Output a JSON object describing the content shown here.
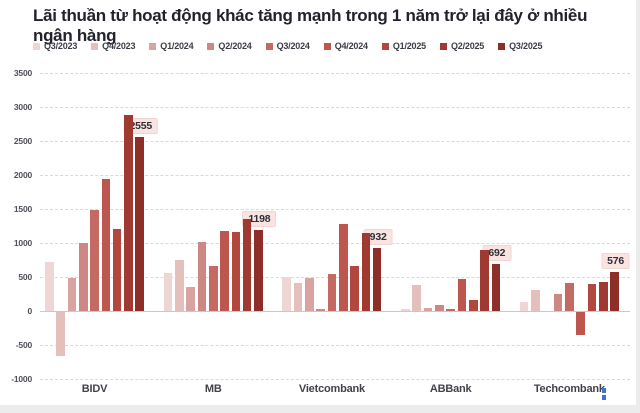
{
  "title": "Lãi thuần từ hoạt động khác tăng mạnh trong 1 năm trở lại đây ở nhiều ngân hàng",
  "chart_data": {
    "type": "bar",
    "title": "Lãi thuần từ hoạt động khác tăng mạnh trong 1 năm trở lại đây ở nhiều ngân hàng",
    "categories": [
      "BIDV",
      "MB",
      "Vietcombank",
      "ABBank",
      "Techcombank"
    ],
    "series": [
      {
        "name": "Q3/2023",
        "color": "#eed6d4",
        "values": [
          720,
          555,
          505,
          30,
          130
        ]
      },
      {
        "name": "Q4/2023",
        "color": "#e4bfbc",
        "values": [
          -650,
          745,
          410,
          380,
          310
        ]
      },
      {
        "name": "Q1/2024",
        "color": "#d8a3a0",
        "values": [
          490,
          350,
          490,
          50,
          0
        ]
      },
      {
        "name": "Q2/2024",
        "color": "#ce8883",
        "values": [
          1005,
          1010,
          30,
          85,
          255
        ]
      },
      {
        "name": "Q3/2024",
        "color": "#c56a62",
        "values": [
          1490,
          660,
          550,
          25,
          410
        ]
      },
      {
        "name": "Q4/2024",
        "color": "#bc564e",
        "values": [
          1940,
          1170,
          1280,
          470,
          -345
        ]
      },
      {
        "name": "Q1/2025",
        "color": "#b1473f",
        "values": [
          1200,
          1160,
          660,
          165,
          390
        ]
      },
      {
        "name": "Q2/2025",
        "color": "#a03932",
        "values": [
          2880,
          1350,
          1150,
          890,
          420
        ]
      },
      {
        "name": "Q3/2025",
        "color": "#8d2f28",
        "values": [
          2555,
          1198,
          932,
          692,
          576
        ]
      }
    ],
    "data_labels_last_series": [
      "2555",
      "1198",
      "932",
      "692",
      "576"
    ],
    "yticks": [
      3500,
      3000,
      2500,
      2000,
      1500,
      1000,
      500,
      0,
      -500,
      -1000
    ],
    "ylim": [
      -1000,
      3500
    ],
    "xlabel": "",
    "ylabel": "",
    "grid": "horizontal-dashed",
    "legend_position": "top-left"
  }
}
